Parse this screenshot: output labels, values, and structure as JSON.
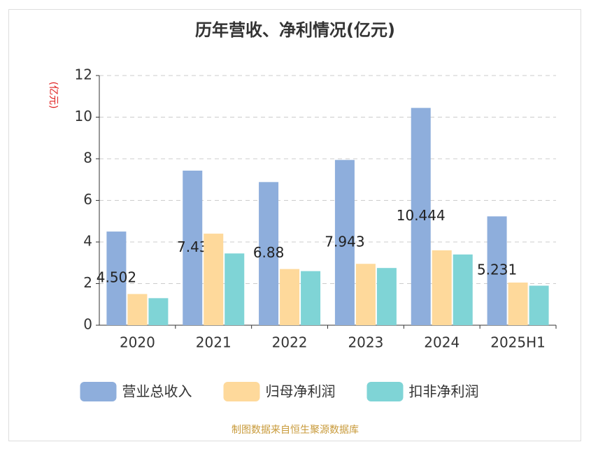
{
  "chart_data": {
    "type": "bar",
    "title": "历年营收、净利情况(亿元)",
    "y_label": "(亿元)",
    "categories": [
      "2020",
      "2021",
      "2022",
      "2023",
      "2024",
      "2025H1"
    ],
    "series": [
      {
        "name": "营业总收入",
        "color": "#8eaedc",
        "values": [
          4.502,
          7.43,
          6.88,
          7.943,
          10.444,
          5.231
        ],
        "show_labels": true
      },
      {
        "name": "归母净利润",
        "color": "#fed99b",
        "values": [
          1.5,
          4.4,
          2.7,
          2.95,
          3.6,
          2.05
        ]
      },
      {
        "name": "扣非净利润",
        "color": "#7fd4d6",
        "values": [
          1.3,
          3.45,
          2.6,
          2.75,
          3.4,
          1.9
        ]
      }
    ],
    "ylim": [
      0,
      12
    ],
    "yticks": [
      0,
      2,
      4,
      6,
      8,
      10,
      12
    ],
    "grid": true,
    "footer": "制图数据来自恒生聚源数据库"
  }
}
